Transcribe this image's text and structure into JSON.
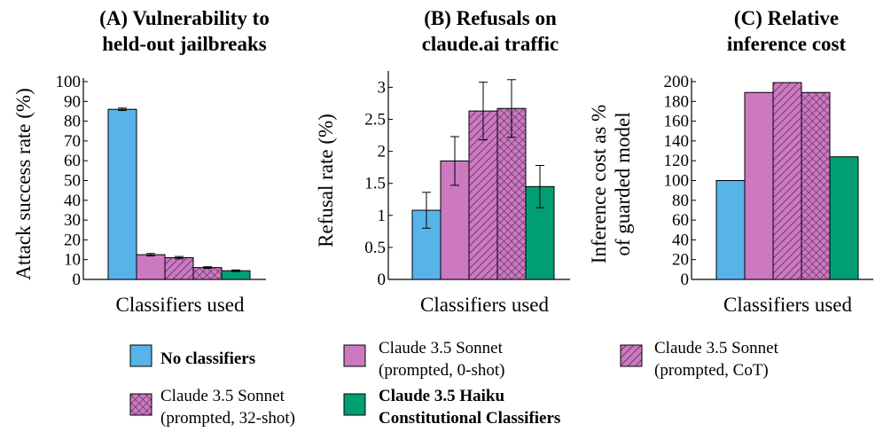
{
  "colors": {
    "no_classifiers": "#56b4e9",
    "sonnet": "#cc79c1",
    "haiku": "#029e73",
    "hatch": "#6b3a6e"
  },
  "legend": [
    {
      "key": "none",
      "lines": [
        "No classifiers"
      ],
      "bold": true,
      "pattern": "solid",
      "color": "#56b4e9"
    },
    {
      "key": "zero",
      "lines": [
        "Claude 3.5 Sonnet",
        "(prompted, 0-shot)"
      ],
      "bold": false,
      "pattern": "solid",
      "color": "#cc79c1"
    },
    {
      "key": "cot",
      "lines": [
        "Claude 3.5 Sonnet",
        "(prompted, CoT)"
      ],
      "bold": false,
      "pattern": "diagonal",
      "color": "#cc79c1"
    },
    {
      "key": "shot32",
      "lines": [
        "Claude 3.5 Sonnet",
        "(prompted, 32-shot)"
      ],
      "bold": false,
      "pattern": "crosshatch",
      "color": "#cc79c1"
    },
    {
      "key": "haiku",
      "lines": [
        "Claude 3.5 Haiku",
        "Constitutional Classifiers"
      ],
      "bold": true,
      "pattern": "solid",
      "color": "#029e73"
    }
  ],
  "chart_data": [
    {
      "type": "bar",
      "title_lines": [
        "(A) Vulnerability to",
        "held-out jailbreaks"
      ],
      "xlabel": "Classifiers used",
      "ylabel_lines": [
        "Attack success rate (%)"
      ],
      "ylim": [
        0,
        100
      ],
      "yticks": [
        0,
        10,
        20,
        30,
        40,
        50,
        60,
        70,
        80,
        90,
        100
      ],
      "ytick_labels": [
        "0",
        "10",
        "20",
        "30",
        "40",
        "50",
        "60",
        "70",
        "80",
        "90",
        "100"
      ],
      "series": [
        {
          "key": "none",
          "value": 86,
          "err": 0.6
        },
        {
          "key": "zero",
          "value": 12.5,
          "err": 0.6
        },
        {
          "key": "cot",
          "value": 11,
          "err": 0.6
        },
        {
          "key": "shot32",
          "value": 6,
          "err": 0.4
        },
        {
          "key": "haiku",
          "value": 4.4,
          "err": 0.4
        }
      ]
    },
    {
      "type": "bar",
      "title_lines": [
        "(B) Refusals on",
        "claude.ai traffic"
      ],
      "xlabel": "Classifiers used",
      "ylabel_lines": [
        "Refusal rate (%)"
      ],
      "ylim": [
        0,
        3.2
      ],
      "yticks": [
        0,
        0.5,
        1,
        1.5,
        2,
        2.5,
        3
      ],
      "ytick_labels": [
        "0",
        "0.5",
        "1",
        "1.5",
        "2",
        "2.5",
        "3"
      ],
      "series": [
        {
          "key": "none",
          "value": 1.08,
          "err": 0.28
        },
        {
          "key": "zero",
          "value": 1.85,
          "err": 0.38
        },
        {
          "key": "cot",
          "value": 2.63,
          "err": 0.45
        },
        {
          "key": "shot32",
          "value": 2.67,
          "err": 0.45
        },
        {
          "key": "haiku",
          "value": 1.45,
          "err": 0.33
        }
      ]
    },
    {
      "type": "bar",
      "title_lines": [
        "(C) Relative",
        "inference cost"
      ],
      "xlabel": "Classifiers used",
      "ylabel_lines": [
        "Inference cost as %",
        "of guarded model"
      ],
      "ylim": [
        0,
        200
      ],
      "yticks": [
        0,
        20,
        40,
        60,
        80,
        100,
        120,
        140,
        160,
        180,
        200
      ],
      "ytick_labels": [
        "0",
        "20",
        "40",
        "60",
        "80",
        "100",
        "120",
        "140",
        "160",
        "180",
        "200"
      ],
      "series": [
        {
          "key": "none",
          "value": 100
        },
        {
          "key": "zero",
          "value": 189
        },
        {
          "key": "cot",
          "value": 199
        },
        {
          "key": "shot32",
          "value": 189
        },
        {
          "key": "haiku",
          "value": 124
        }
      ]
    }
  ]
}
